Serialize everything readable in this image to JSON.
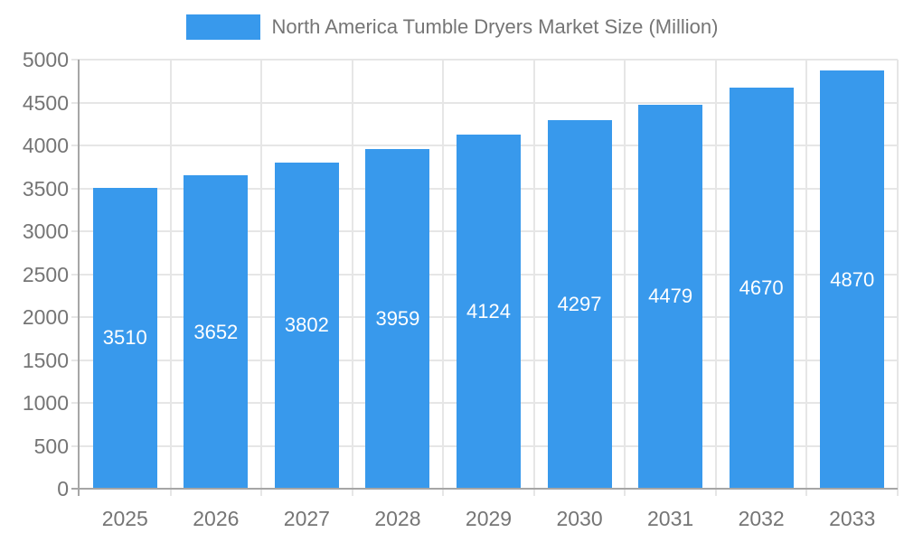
{
  "legend": {
    "label": "North America Tumble Dryers Market Size (Million)"
  },
  "chart_data": {
    "type": "bar",
    "title": "North America Tumble Dryers Market Size (Million)",
    "series_name": "North America Tumble Dryers Market Size (Million)",
    "categories": [
      "2025",
      "2026",
      "2027",
      "2028",
      "2029",
      "2030",
      "2031",
      "2032",
      "2033"
    ],
    "values": [
      3510,
      3652,
      3802,
      3959,
      4124,
      4297,
      4479,
      4670,
      4870
    ],
    "value_labels_shown": true,
    "xlabel": "",
    "ylabel": "",
    "ylim": [
      0,
      5000
    ],
    "yticks": [
      0,
      500,
      1000,
      1500,
      2000,
      2500,
      3000,
      3500,
      4000,
      4500,
      5000
    ],
    "grid": true,
    "legend_position": "top",
    "colors": {
      "bar": "#3899ec",
      "bar_label_text": "#ffffff",
      "gridline": "#e6e6e6",
      "axis_line": "#a6a6a6",
      "tick_text": "#757575",
      "legend_text": "#757575",
      "background": "#ffffff"
    }
  }
}
